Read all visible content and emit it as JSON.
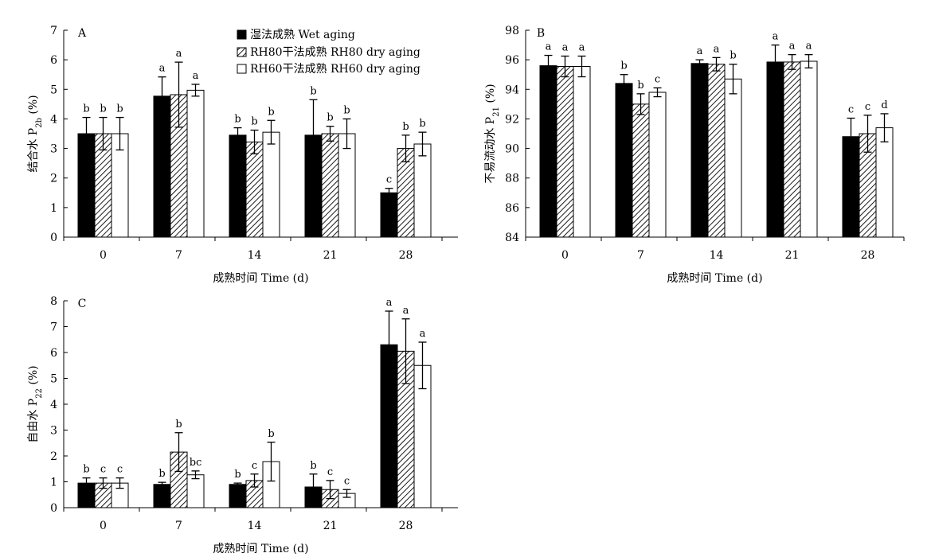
{
  "colors": {
    "wet": "#000000",
    "rh80": "hatch-diagonal",
    "rh60": "#ffffff",
    "axis": "#000000"
  },
  "legend": {
    "entries": [
      "湿法成熟 Wet aging",
      "RH80干法成熟  RH80 dry aging",
      "RH60干法成熟  RH60 dry aging"
    ]
  },
  "chart_data": [
    {
      "type": "bar",
      "panel": "A",
      "xlabel": "成熟时间 Time (d)",
      "ylabel_main": "结合水 P",
      "ylabel_sub": "2b",
      "ylabel_tail": " (%)",
      "ylim": [
        0,
        7
      ],
      "yticks": [
        "0",
        "1",
        "2",
        "3",
        "4",
        "5",
        "6",
        "7"
      ],
      "categories": [
        "0",
        "7",
        "14",
        "21",
        "28"
      ],
      "series": [
        {
          "name": "湿法成熟 Wet aging",
          "values": [
            3.5,
            4.77,
            3.45,
            3.45,
            1.5
          ],
          "errors": [
            0.55,
            0.65,
            0.25,
            1.2,
            0.15
          ],
          "letters": [
            "b",
            "a",
            "b",
            "b",
            "c"
          ]
        },
        {
          "name": "RH80干法成熟  RH80 dry aging",
          "values": [
            3.5,
            4.82,
            3.22,
            3.5,
            3.0
          ],
          "errors": [
            0.55,
            1.1,
            0.4,
            0.25,
            0.45
          ],
          "letters": [
            "b",
            "a",
            "b",
            "b",
            "b"
          ]
        },
        {
          "name": "RH60干法成熟  RH60 dry aging",
          "values": [
            3.5,
            4.97,
            3.55,
            3.5,
            3.15
          ],
          "errors": [
            0.55,
            0.2,
            0.4,
            0.5,
            0.4
          ],
          "letters": [
            "b",
            "a",
            "b",
            "b",
            "b"
          ]
        }
      ]
    },
    {
      "type": "bar",
      "panel": "B",
      "xlabel": "成熟时间 Time (d)",
      "ylabel_main": "不易流动水 P",
      "ylabel_sub": "21",
      "ylabel_tail": " (%)",
      "ylim": [
        84,
        98
      ],
      "yticks": [
        "84",
        "86",
        "88",
        "90",
        "92",
        "94",
        "96",
        "98"
      ],
      "categories": [
        "0",
        "7",
        "14",
        "21",
        "28"
      ],
      "series": [
        {
          "name": "湿法成熟 Wet aging",
          "values": [
            95.6,
            94.4,
            95.75,
            95.85,
            90.8
          ],
          "errors": [
            0.7,
            0.6,
            0.25,
            1.15,
            1.25
          ],
          "letters": [
            "a",
            "b",
            "a",
            "a",
            "c"
          ]
        },
        {
          "name": "RH80干法成熟  RH80 dry aging",
          "values": [
            95.55,
            93.0,
            95.7,
            95.85,
            91.0
          ],
          "errors": [
            0.7,
            0.7,
            0.45,
            0.5,
            1.25
          ],
          "letters": [
            "a",
            "b",
            "a",
            "a",
            "c"
          ]
        },
        {
          "name": "RH60干法成熟  RH60 dry aging",
          "values": [
            95.55,
            93.8,
            94.7,
            95.9,
            91.4
          ],
          "errors": [
            0.7,
            0.3,
            1.0,
            0.45,
            0.95
          ],
          "letters": [
            "a",
            "c",
            "b",
            "a",
            "d"
          ]
        }
      ]
    },
    {
      "type": "bar",
      "panel": "C",
      "xlabel": "成熟时间 Time (d)",
      "ylabel_main": "自由水 P",
      "ylabel_sub": "22",
      "ylabel_tail": " (%)",
      "ylim": [
        0,
        8
      ],
      "yticks": [
        "0",
        "1",
        "2",
        "3",
        "4",
        "5",
        "6",
        "7",
        "8"
      ],
      "categories": [
        "0",
        "7",
        "14",
        "21",
        "28"
      ],
      "series": [
        {
          "name": "湿法成熟 Wet aging",
          "values": [
            0.95,
            0.9,
            0.9,
            0.8,
            6.3
          ],
          "errors": [
            0.2,
            0.08,
            0.05,
            0.5,
            1.3
          ],
          "letters": [
            "b",
            "b",
            "b",
            "b",
            "a"
          ]
        },
        {
          "name": "RH80干法成熟  RH80 dry aging",
          "values": [
            0.95,
            2.15,
            1.05,
            0.7,
            6.05
          ],
          "errors": [
            0.2,
            0.75,
            0.25,
            0.35,
            1.25
          ],
          "letters": [
            "c",
            "b",
            "c",
            "c",
            "a"
          ]
        },
        {
          "name": "RH60干法成熟  RH60 dry aging",
          "values": [
            0.95,
            1.27,
            1.78,
            0.55,
            5.5
          ],
          "errors": [
            0.2,
            0.15,
            0.75,
            0.15,
            0.9
          ],
          "letters": [
            "c",
            "bc",
            "b",
            "c",
            "a"
          ]
        }
      ]
    }
  ]
}
